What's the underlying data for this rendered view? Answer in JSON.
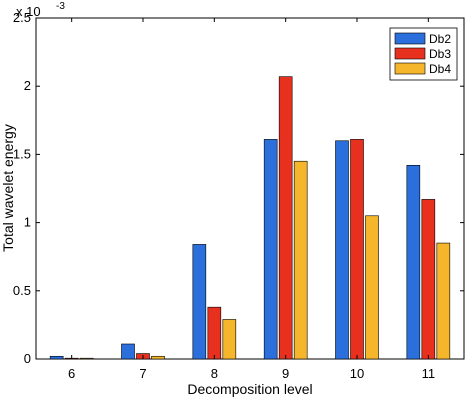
{
  "chart_data": {
    "type": "bar",
    "xlabel": "Decomposition level",
    "ylabel": "Total wavelet energy",
    "y_multiplier": "x 10",
    "y_exponent": "-3",
    "ylim": [
      0,
      0.0025
    ],
    "yticks": [
      0,
      0.0005,
      0.001,
      0.0015,
      0.002,
      0.0025
    ],
    "yticklabels": [
      "0",
      "0.5",
      "1",
      "1.5",
      "2",
      "2.5"
    ],
    "categories": [
      "6",
      "7",
      "8",
      "9",
      "10",
      "11"
    ],
    "series": [
      {
        "name": "Db2",
        "color": "#2a6fdb",
        "values": [
          2e-05,
          0.00011,
          0.00084,
          0.00161,
          0.0016,
          0.00142
        ]
      },
      {
        "name": "Db3",
        "color": "#e8301e",
        "values": [
          5e-06,
          4e-05,
          0.00038,
          0.00207,
          0.00161,
          0.00117
        ]
      },
      {
        "name": "Db4",
        "color": "#f5b62b",
        "values": [
          3e-06,
          2e-05,
          0.00029,
          0.00145,
          0.00105,
          0.00085
        ]
      }
    ],
    "legend_position": "top-right",
    "grid": false
  }
}
